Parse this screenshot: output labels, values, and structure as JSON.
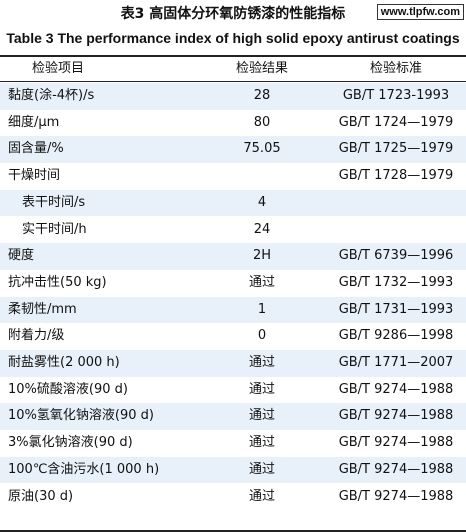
{
  "header": {
    "title": "表3  高固体分环氧防锈漆的性能指标",
    "subtitle": "Table 3   The performance index of high solid epoxy antirust coatings",
    "watermark": "www.tlpfw.com"
  },
  "table": {
    "columns": [
      "检验项目",
      "检验结果",
      "检验标准"
    ],
    "rows": [
      {
        "item": "黏度(涂-4杯)/s",
        "result": "28",
        "standard": "GB/T 1723-1993"
      },
      {
        "item": "细度/μm",
        "result": "80",
        "standard": "GB/T 1724—1979"
      },
      {
        "item": "固含量/%",
        "result": "75.05",
        "standard": "GB/T 1725—1979"
      },
      {
        "item": "干燥时间",
        "standard": "GB/T 1728—1979"
      },
      {
        "item": "表干时间/s",
        "result": "4",
        "indent": true
      },
      {
        "item": "实干时间/h",
        "result": "24",
        "indent": true
      },
      {
        "item": "硬度",
        "result": "2H",
        "standard": "GB/T 6739—1996"
      },
      {
        "item": "抗冲击性(50 kg)",
        "result": "通过",
        "standard": "GB/T 1732—1993"
      },
      {
        "item": "柔韧性/mm",
        "result": "1",
        "standard": "GB/T 1731—1993"
      },
      {
        "item": "附着力/级",
        "result": "0",
        "standard": "GB/T 9286—1998"
      },
      {
        "item": "耐盐雾性(2 000 h)",
        "result": "通过",
        "standard": "GB/T 1771—2007"
      },
      {
        "item": "10%硫酸溶液(90 d)",
        "result": "通过",
        "standard": "GB/T 9274—1988"
      },
      {
        "item": "10%氢氧化钠溶液(90 d)",
        "result": "通过",
        "standard": "GB/T 9274—1988"
      },
      {
        "item": "3%氯化钠溶液(90 d)",
        "result": "通过",
        "standard": "GB/T 9274—1988"
      },
      {
        "item": "100℃含油污水(1 000 h)",
        "result": "通过",
        "standard": "GB/T 9274—1988"
      },
      {
        "item": "原油(30 d)",
        "result": "通过",
        "standard": "GB/T 9274—1988"
      }
    ]
  }
}
